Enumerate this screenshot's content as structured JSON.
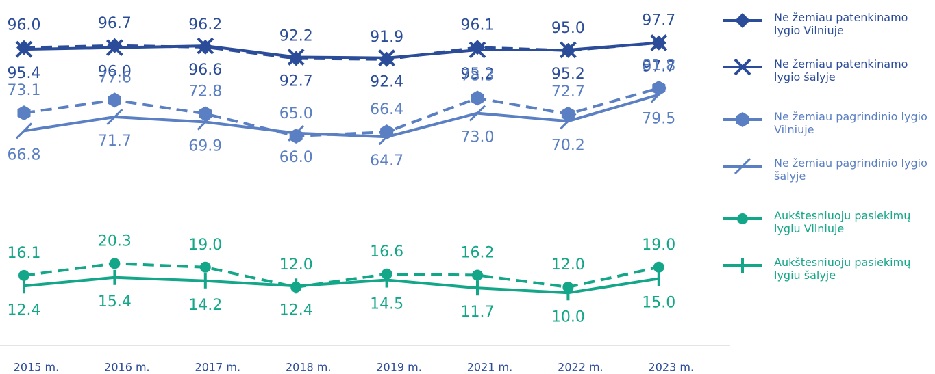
{
  "chart_data": {
    "type": "line",
    "categories": [
      "2015 m.",
      "2016 m.",
      "2017 m.",
      "2018 m.",
      "2019 m.",
      "2021 m.",
      "2022 m.",
      "2023 m."
    ],
    "ylim": [
      0,
      100
    ],
    "series": [
      {
        "name": "Ne žemiau patenkinamo lygio Vilniuje",
        "color": "#2b4c98",
        "dashed": true,
        "marker": "diamond",
        "values": [
          96.0,
          96.7,
          96.2,
          92.2,
          91.9,
          96.1,
          95.0,
          97.7
        ],
        "value_labels": [
          "96.0",
          "96.7",
          "96.2",
          "92.2",
          "91.9",
          "96.1",
          "95.0",
          "97.7"
        ]
      },
      {
        "name": "Ne žemiau patenkinamo lygio šalyje",
        "color": "#2b4c98",
        "dashed": false,
        "marker": "x",
        "values": [
          95.4,
          96.0,
          96.6,
          92.7,
          92.4,
          95.2,
          95.2,
          97.7
        ],
        "value_labels": [
          "95.4",
          "96.0",
          "96.6",
          "92.7",
          "92.4",
          "95.2",
          "95.2",
          "97.7"
        ]
      },
      {
        "name": "Ne žemiau pagrindinio lygio Vilniuje",
        "color": "#5b7fc3",
        "dashed": true,
        "marker": "hexagon",
        "values": [
          73.1,
          77.6,
          72.8,
          65.0,
          66.4,
          78.3,
          72.7,
          81.8
        ],
        "value_labels": [
          "73.1",
          "77.6",
          "72.8",
          "65.0",
          "66.4",
          "78.3",
          "72.7",
          "81.8"
        ]
      },
      {
        "name": "Ne žemiau pagrindinio lygio šalyje",
        "color": "#5b7fc3",
        "dashed": false,
        "marker": "slash",
        "values": [
          66.8,
          71.7,
          69.9,
          66.0,
          64.7,
          73.0,
          70.2,
          79.5
        ],
        "value_labels": [
          "66.8",
          "71.7",
          "69.9",
          "66.0",
          "64.7",
          "73.0",
          "70.2",
          "79.5"
        ]
      },
      {
        "name": "Aukštesniuoju pasiekimų lygiu Vilniuje",
        "color": "#14a688",
        "dashed": true,
        "marker": "circle",
        "values": [
          16.1,
          20.3,
          19.0,
          12.0,
          16.6,
          16.2,
          12.0,
          19.0
        ],
        "value_labels": [
          "16.1",
          "20.3",
          "19.0",
          "12.0",
          "16.6",
          "16.2",
          "12.0",
          "19.0"
        ]
      },
      {
        "name": "Aukštesniuoju pasiekimų lygiu šalyje",
        "color": "#14a688",
        "dashed": false,
        "marker": "vline",
        "values": [
          12.4,
          15.4,
          14.2,
          12.4,
          14.5,
          11.7,
          10.0,
          15.0
        ],
        "value_labels": [
          "12.4",
          "15.4",
          "14.2",
          "12.4",
          "14.5",
          "11.7",
          "10.0",
          "15.0"
        ]
      }
    ]
  }
}
